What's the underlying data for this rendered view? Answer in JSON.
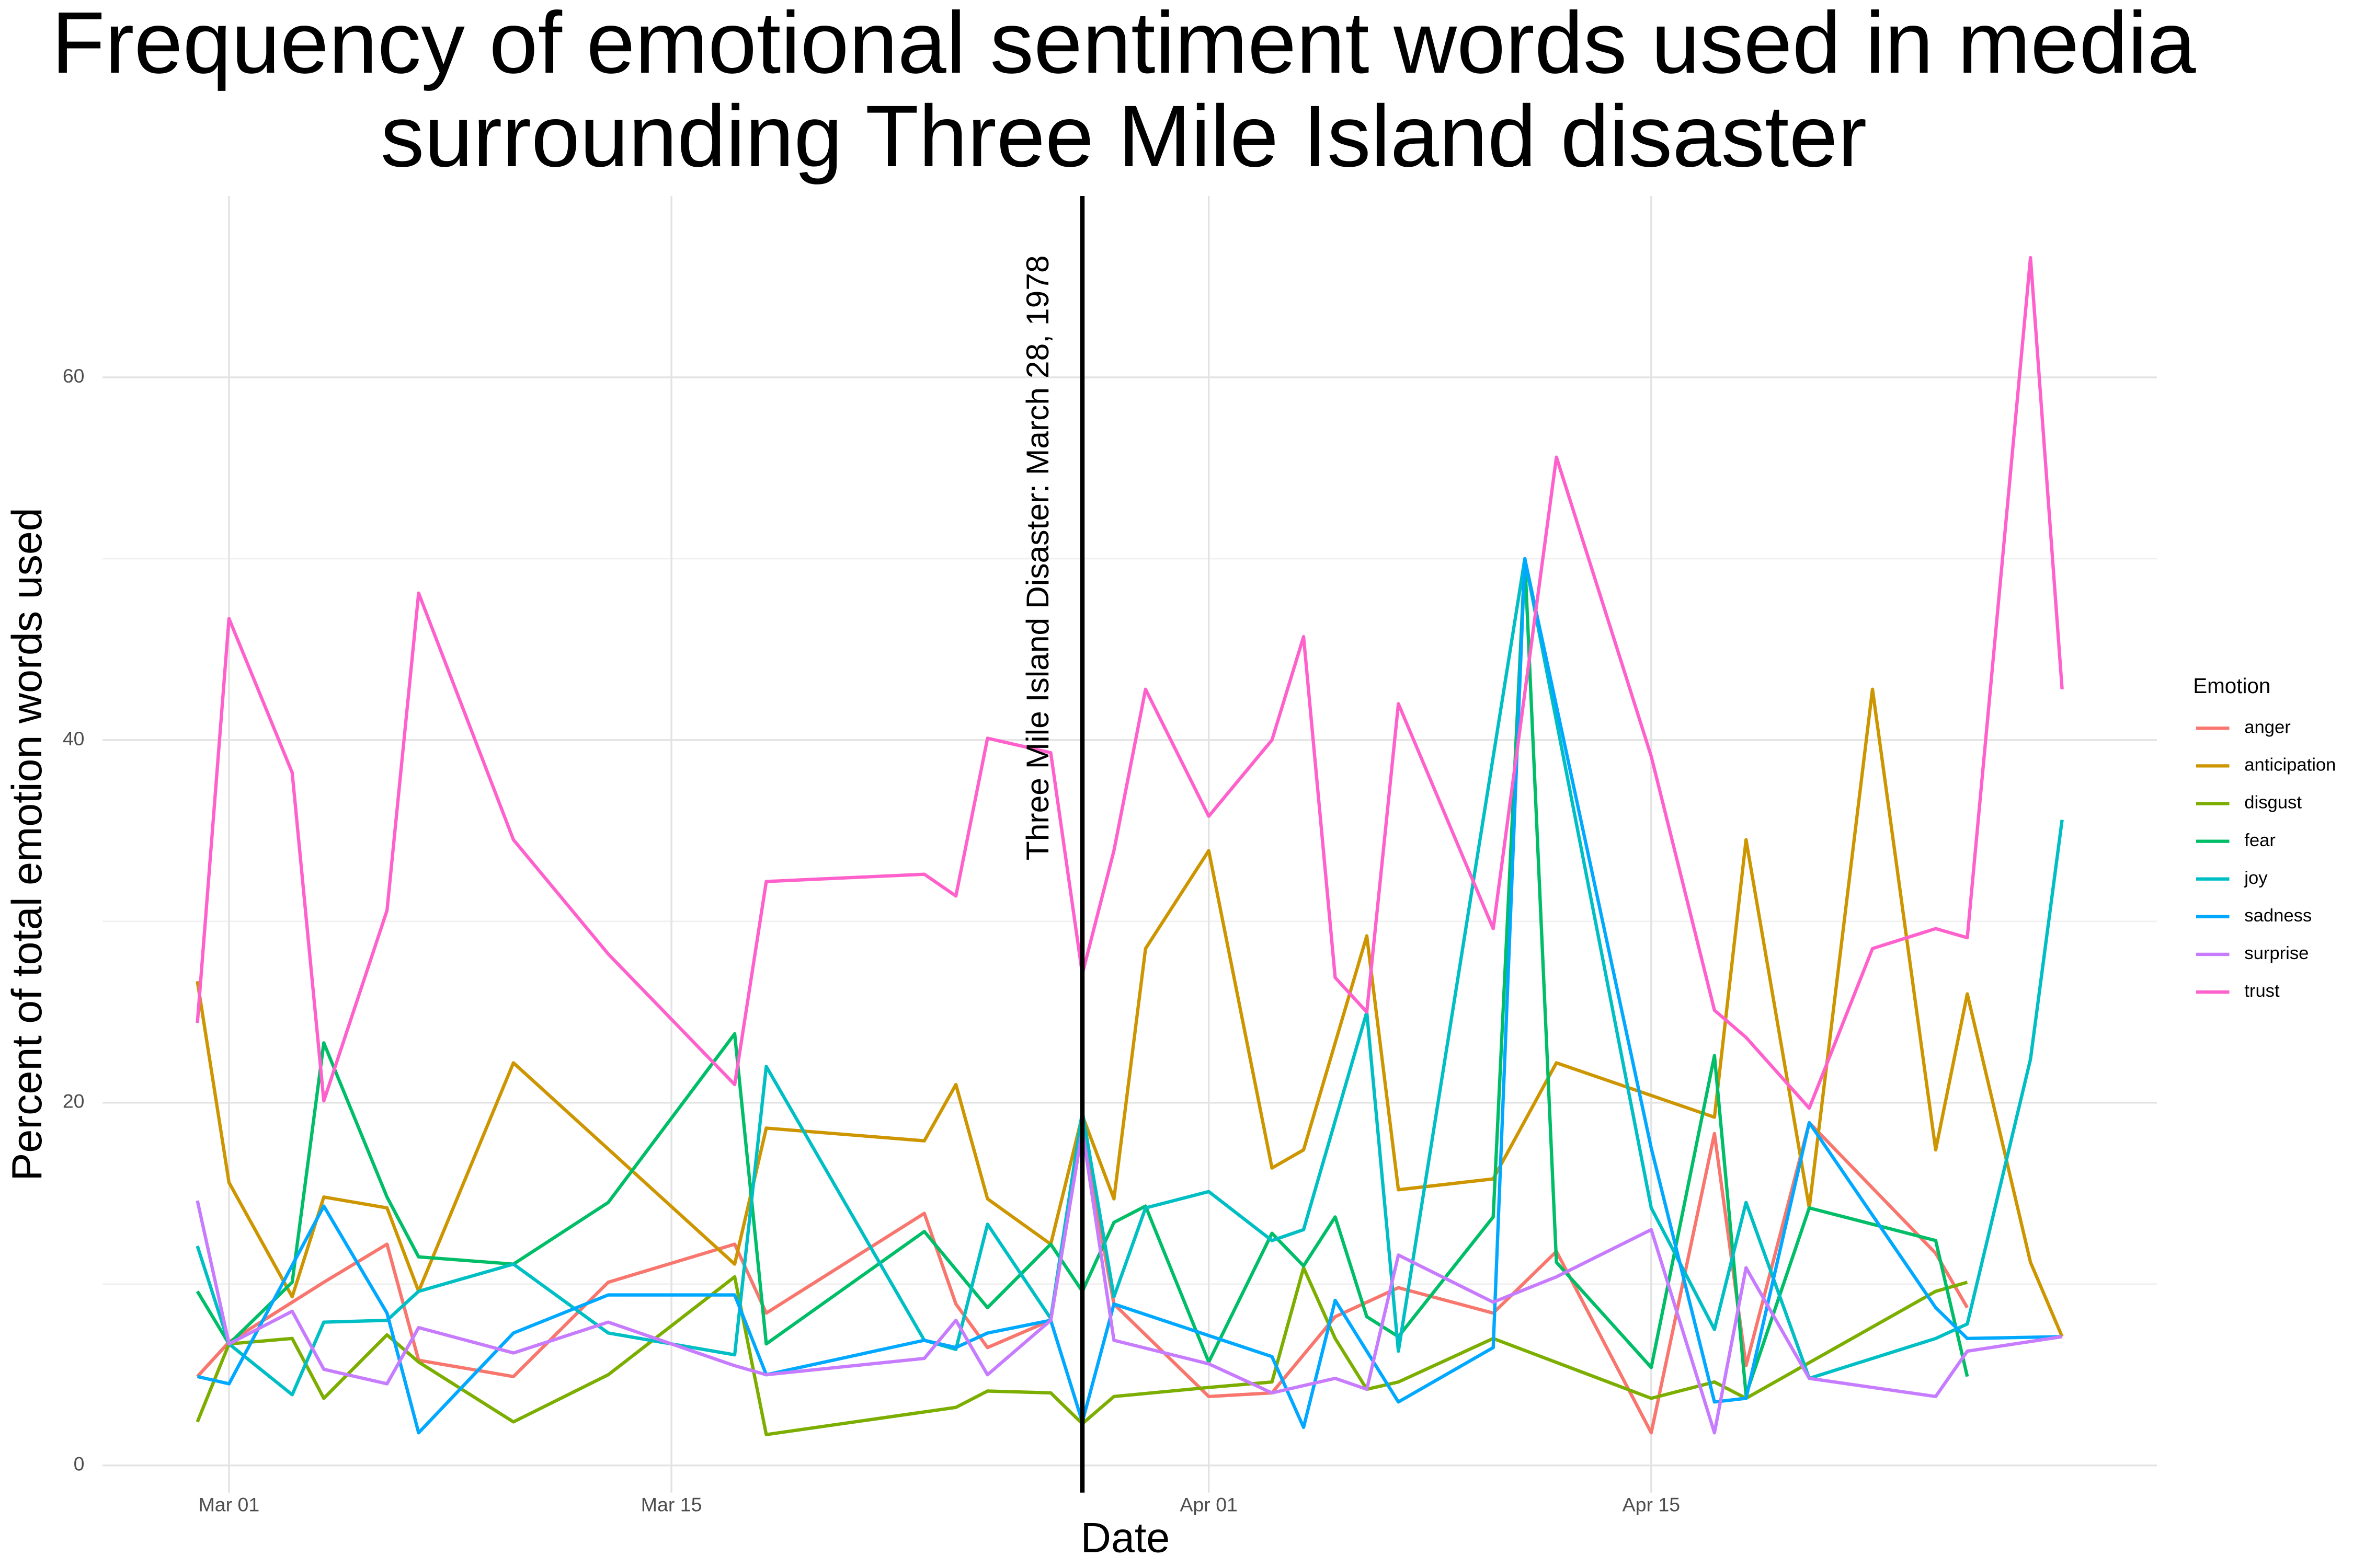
{
  "chart_data": {
    "type": "line",
    "title": "Frequency of emotional sentiment words used in media surrounding Three Mile Island disaster",
    "x_label": "Date",
    "y_label": "Percent of total emotion words used",
    "legend_title": "Emotion",
    "legend_position": "right",
    "grid": true,
    "xlim": [
      "Feb 25",
      "May 01"
    ],
    "xticks": [
      "Mar 01",
      "Mar 15",
      "Apr 01",
      "Apr 15"
    ],
    "ylim": [
      -1.5,
      70
    ],
    "yticks": [
      0,
      20,
      40,
      60
    ],
    "yminor": [
      10,
      30,
      50
    ],
    "annotation": {
      "text": "Three Mile Island Disaster: March 28, 1978",
      "x": "Mar 28",
      "color": "#000000"
    },
    "series": [
      {
        "name": "anger",
        "color": "#F8766D",
        "x": [
          "Feb 28",
          "Mar 01",
          "Mar 04",
          "Mar 06",
          "Mar 07",
          "Mar 10",
          "Mar 13",
          "Mar 17",
          "Mar 18",
          "Mar 23",
          "Mar 24",
          "Mar 25",
          "Mar 27",
          "Mar 28",
          "Mar 29",
          "Apr 01",
          "Apr 03",
          "Apr 05",
          "Apr 07",
          "Apr 10",
          "Apr 12",
          "Apr 15",
          "Apr 17",
          "Apr 18",
          "Apr 20",
          "Apr 24",
          "Apr 25"
        ],
        "values": [
          4.9,
          6.8,
          10.1,
          12.2,
          5.8,
          4.9,
          10.1,
          12.2,
          8.4,
          13.9,
          8.9,
          6.5,
          8.0,
          18.5,
          8.9,
          3.8,
          4.0,
          8.2,
          9.8,
          8.4,
          11.8,
          1.8,
          18.3,
          5.5,
          18.9,
          11.7,
          8.7
        ]
      },
      {
        "name": "anticipation",
        "color": "#CD9600",
        "x": [
          "Feb 28",
          "Mar 01",
          "Mar 03",
          "Mar 04",
          "Mar 06",
          "Mar 07",
          "Mar 10",
          "Mar 17",
          "Mar 18",
          "Mar 23",
          "Mar 24",
          "Mar 25",
          "Mar 27",
          "Mar 28",
          "Mar 29",
          "Mar 30",
          "Apr 01",
          "Apr 03",
          "Apr 04",
          "Apr 06",
          "Apr 07",
          "Apr 10",
          "Apr 12",
          "Apr 17",
          "Apr 18",
          "Apr 20",
          "Apr 22",
          "Apr 24",
          "Apr 25",
          "Apr 27",
          "Apr 28"
        ],
        "values": [
          26.7,
          15.6,
          9.3,
          14.8,
          14.2,
          9.6,
          22.2,
          11.1,
          18.6,
          17.9,
          21.0,
          14.7,
          12.2,
          19.3,
          14.7,
          28.5,
          33.9,
          16.4,
          17.4,
          29.2,
          15.2,
          15.8,
          22.2,
          19.2,
          34.5,
          14.2,
          42.8,
          17.4,
          26.0,
          11.2,
          7.1
        ]
      },
      {
        "name": "disgust",
        "color": "#7CAE00",
        "x": [
          "Feb 28",
          "Mar 01",
          "Mar 03",
          "Mar 04",
          "Mar 06",
          "Mar 07",
          "Mar 10",
          "Mar 13",
          "Mar 17",
          "Mar 18",
          "Mar 24",
          "Mar 25",
          "Mar 27",
          "Mar 28",
          "Mar 29",
          "Apr 01",
          "Apr 03",
          "Apr 04",
          "Apr 05",
          "Apr 06",
          "Apr 07",
          "Apr 10",
          "Apr 15",
          "Apr 17",
          "Apr 18",
          "Apr 24",
          "Apr 25"
        ],
        "values": [
          2.4,
          6.7,
          7.0,
          3.7,
          7.2,
          5.7,
          2.4,
          5.0,
          10.4,
          1.7,
          3.2,
          4.1,
          4.0,
          2.3,
          3.8,
          4.3,
          4.6,
          10.9,
          7.0,
          4.2,
          4.6,
          7.0,
          3.7,
          4.6,
          3.7,
          9.6,
          10.1
        ]
      },
      {
        "name": "fear",
        "color": "#00BE67",
        "x": [
          "Feb 28",
          "Mar 01",
          "Mar 03",
          "Mar 04",
          "Mar 06",
          "Mar 07",
          "Mar 10",
          "Mar 13",
          "Mar 17",
          "Mar 18",
          "Mar 23",
          "Mar 25",
          "Mar 27",
          "Mar 28",
          "Mar 29",
          "Mar 30",
          "Apr 01",
          "Apr 03",
          "Apr 04",
          "Apr 05",
          "Apr 06",
          "Apr 07",
          "Apr 10",
          "Apr 11",
          "Apr 12",
          "Apr 15",
          "Apr 17",
          "Apr 18",
          "Apr 20",
          "Apr 24",
          "Apr 25"
        ],
        "values": [
          9.6,
          6.7,
          10.1,
          23.3,
          14.8,
          11.5,
          11.1,
          14.5,
          23.8,
          6.7,
          12.9,
          8.7,
          12.2,
          9.6,
          13.4,
          14.3,
          5.7,
          12.8,
          11.0,
          13.7,
          8.2,
          7.1,
          13.7,
          50.0,
          11.2,
          5.4,
          22.6,
          3.9,
          14.2,
          12.4,
          4.9
        ]
      },
      {
        "name": "joy",
        "color": "#00BFC4",
        "x": [
          "Feb 28",
          "Mar 01",
          "Mar 03",
          "Mar 04",
          "Mar 06",
          "Mar 07",
          "Mar 10",
          "Mar 13",
          "Mar 17",
          "Mar 18",
          "Mar 23",
          "Mar 24",
          "Mar 25",
          "Mar 27",
          "Mar 28",
          "Mar 29",
          "Mar 30",
          "Apr 01",
          "Apr 03",
          "Apr 04",
          "Apr 06",
          "Apr 07",
          "Apr 11",
          "Apr 15",
          "Apr 17",
          "Apr 18",
          "Apr 20",
          "Apr 24",
          "Apr 25",
          "Apr 27",
          "Apr 28"
        ],
        "values": [
          12.1,
          6.7,
          3.9,
          7.9,
          8.0,
          9.6,
          11.1,
          7.3,
          6.1,
          22.0,
          6.9,
          6.4,
          13.3,
          8.1,
          19.5,
          9.3,
          14.2,
          15.1,
          12.4,
          13.0,
          25.0,
          6.3,
          50.0,
          14.2,
          7.5,
          14.5,
          4.8,
          7.0,
          7.8,
          22.4,
          35.6
        ]
      },
      {
        "name": "sadness",
        "color": "#00A9FF",
        "x": [
          "Feb 28",
          "Mar 01",
          "Mar 04",
          "Mar 06",
          "Mar 07",
          "Mar 10",
          "Mar 13",
          "Mar 17",
          "Mar 18",
          "Mar 23",
          "Mar 24",
          "Mar 25",
          "Mar 27",
          "Mar 28",
          "Mar 29",
          "Apr 03",
          "Apr 04",
          "Apr 05",
          "Apr 07",
          "Apr 10",
          "Apr 11",
          "Apr 15",
          "Apr 17",
          "Apr 18",
          "Apr 20",
          "Apr 24",
          "Apr 25",
          "Apr 28"
        ],
        "values": [
          4.9,
          4.5,
          14.3,
          8.4,
          1.8,
          7.3,
          9.4,
          9.4,
          5.0,
          6.9,
          6.5,
          7.3,
          8.0,
          2.4,
          8.9,
          6.0,
          2.1,
          9.1,
          3.5,
          6.5,
          50.0,
          17.5,
          3.5,
          3.7,
          18.9,
          8.7,
          7.0,
          7.1
        ]
      },
      {
        "name": "surprise",
        "color": "#C77CFF",
        "x": [
          "Feb 28",
          "Mar 01",
          "Mar 03",
          "Mar 04",
          "Mar 06",
          "Mar 07",
          "Mar 10",
          "Mar 13",
          "Mar 17",
          "Mar 18",
          "Mar 23",
          "Mar 24",
          "Mar 25",
          "Mar 27",
          "Mar 28",
          "Mar 29",
          "Apr 01",
          "Apr 03",
          "Apr 05",
          "Apr 06",
          "Apr 07",
          "Apr 10",
          "Apr 12",
          "Apr 15",
          "Apr 17",
          "Apr 18",
          "Apr 20",
          "Apr 24",
          "Apr 25",
          "Apr 28"
        ],
        "values": [
          14.6,
          6.7,
          8.5,
          5.3,
          4.5,
          7.6,
          6.2,
          7.9,
          5.5,
          5.0,
          5.9,
          8.0,
          5.0,
          8.0,
          18.5,
          6.9,
          5.6,
          4.0,
          4.8,
          4.2,
          11.6,
          9.0,
          10.4,
          13.0,
          1.8,
          10.9,
          4.8,
          3.8,
          6.3,
          7.1
        ]
      },
      {
        "name": "trust",
        "color": "#FF61CC",
        "x": [
          "Feb 28",
          "Mar 01",
          "Mar 03",
          "Mar 04",
          "Mar 06",
          "Mar 07",
          "Mar 10",
          "Mar 13",
          "Mar 17",
          "Mar 18",
          "Mar 23",
          "Mar 24",
          "Mar 25",
          "Mar 27",
          "Mar 28",
          "Mar 29",
          "Mar 30",
          "Apr 01",
          "Apr 03",
          "Apr 04",
          "Apr 05",
          "Apr 06",
          "Apr 07",
          "Apr 10",
          "Apr 12",
          "Apr 15",
          "Apr 17",
          "Apr 18",
          "Apr 20",
          "Apr 22",
          "Apr 24",
          "Apr 25",
          "Apr 27",
          "Apr 28"
        ],
        "values": [
          24.4,
          46.7,
          38.2,
          20.1,
          30.6,
          48.1,
          34.5,
          28.2,
          21.0,
          32.2,
          32.6,
          31.4,
          40.1,
          39.3,
          27.1,
          33.9,
          42.8,
          35.8,
          40.0,
          45.7,
          26.9,
          25.0,
          42.0,
          29.6,
          55.6,
          39.1,
          25.1,
          23.6,
          19.7,
          28.5,
          29.6,
          29.1,
          66.6,
          42.8
        ]
      }
    ]
  }
}
